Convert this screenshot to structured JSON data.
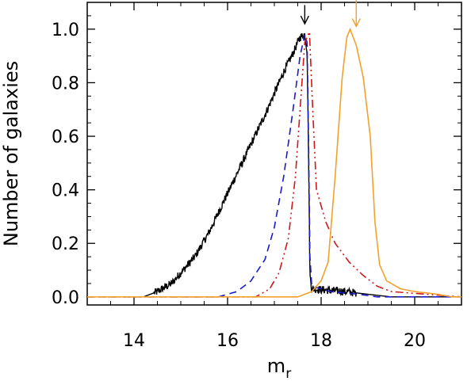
{
  "chart_data": {
    "type": "line",
    "xlabel": "m",
    "xlabel_sub": "r",
    "ylabel": "Number of galaxies",
    "xlim": [
      13,
      21
    ],
    "ylim": [
      -0.03,
      1.1
    ],
    "xticks": [
      14,
      16,
      18,
      20
    ],
    "xtick_labels": [
      "14",
      "16",
      "18",
      "20"
    ],
    "yticks": [
      0.0,
      0.2,
      0.4,
      0.6,
      0.8,
      1.0
    ],
    "ytick_labels": [
      "0.0",
      "0.2",
      "0.4",
      "0.6",
      "0.8",
      "1.0"
    ],
    "grid": false,
    "legend": "none",
    "series": [
      {
        "color": "#000000",
        "style": "solid",
        "noisy": true,
        "points": [
          [
            13.0,
            0.0
          ],
          [
            14.2,
            0.0
          ],
          [
            14.5,
            0.02
          ],
          [
            14.8,
            0.05
          ],
          [
            15.0,
            0.09
          ],
          [
            15.3,
            0.15
          ],
          [
            15.6,
            0.24
          ],
          [
            15.9,
            0.35
          ],
          [
            16.2,
            0.46
          ],
          [
            16.5,
            0.57
          ],
          [
            16.8,
            0.68
          ],
          [
            17.0,
            0.76
          ],
          [
            17.2,
            0.84
          ],
          [
            17.4,
            0.91
          ],
          [
            17.55,
            0.97
          ],
          [
            17.65,
            0.98
          ],
          [
            17.7,
            0.92
          ],
          [
            17.73,
            0.55
          ],
          [
            17.76,
            0.08
          ],
          [
            17.8,
            0.03
          ],
          [
            18.5,
            0.02
          ],
          [
            19.0,
            0.01
          ],
          [
            19.5,
            0.0
          ],
          [
            21.0,
            0.0
          ]
        ]
      },
      {
        "color": "#1a1acc",
        "style": "dash",
        "points": [
          [
            13.0,
            0.0
          ],
          [
            15.8,
            0.0
          ],
          [
            16.2,
            0.02
          ],
          [
            16.5,
            0.06
          ],
          [
            16.8,
            0.14
          ],
          [
            17.0,
            0.26
          ],
          [
            17.2,
            0.45
          ],
          [
            17.4,
            0.7
          ],
          [
            17.55,
            0.9
          ],
          [
            17.65,
            0.98
          ],
          [
            17.7,
            0.95
          ],
          [
            17.73,
            0.6
          ],
          [
            17.76,
            0.15
          ],
          [
            17.8,
            0.04
          ],
          [
            18.2,
            0.02
          ],
          [
            18.8,
            0.01
          ],
          [
            19.2,
            0.0
          ],
          [
            21.0,
            0.0
          ]
        ]
      },
      {
        "color": "#cc1a1a",
        "style": "dashdotdot",
        "points": [
          [
            13.0,
            0.0
          ],
          [
            16.6,
            0.0
          ],
          [
            16.9,
            0.03
          ],
          [
            17.1,
            0.09
          ],
          [
            17.3,
            0.22
          ],
          [
            17.45,
            0.45
          ],
          [
            17.55,
            0.7
          ],
          [
            17.65,
            0.95
          ],
          [
            17.75,
            0.99
          ],
          [
            17.82,
            0.7
          ],
          [
            17.9,
            0.4
          ],
          [
            18.1,
            0.28
          ],
          [
            18.3,
            0.2
          ],
          [
            18.6,
            0.13
          ],
          [
            18.9,
            0.08
          ],
          [
            19.2,
            0.04
          ],
          [
            19.5,
            0.02
          ],
          [
            21.0,
            0.0
          ]
        ]
      },
      {
        "color": "#f2a12b",
        "style": "solid",
        "points": [
          [
            13.0,
            0.0
          ],
          [
            17.5,
            0.0
          ],
          [
            17.8,
            0.02
          ],
          [
            18.0,
            0.06
          ],
          [
            18.15,
            0.13
          ],
          [
            18.3,
            0.45
          ],
          [
            18.45,
            0.82
          ],
          [
            18.55,
            0.97
          ],
          [
            18.62,
            1.0
          ],
          [
            18.75,
            0.94
          ],
          [
            18.9,
            0.82
          ],
          [
            19.05,
            0.6
          ],
          [
            19.15,
            0.28
          ],
          [
            19.25,
            0.12
          ],
          [
            19.4,
            0.06
          ],
          [
            19.7,
            0.03
          ],
          [
            20.0,
            0.02
          ],
          [
            20.5,
            0.01
          ],
          [
            20.8,
            0.0
          ],
          [
            21.0,
            0.0
          ]
        ]
      }
    ],
    "annotations": [
      {
        "type": "arrow",
        "x": 17.65,
        "y_from": 1.09,
        "y_to": 1.02,
        "color": "#000000"
      },
      {
        "type": "arrow",
        "x": 18.75,
        "y_from": 1.12,
        "y_to": 1.01,
        "color": "#f2a12b"
      }
    ]
  }
}
